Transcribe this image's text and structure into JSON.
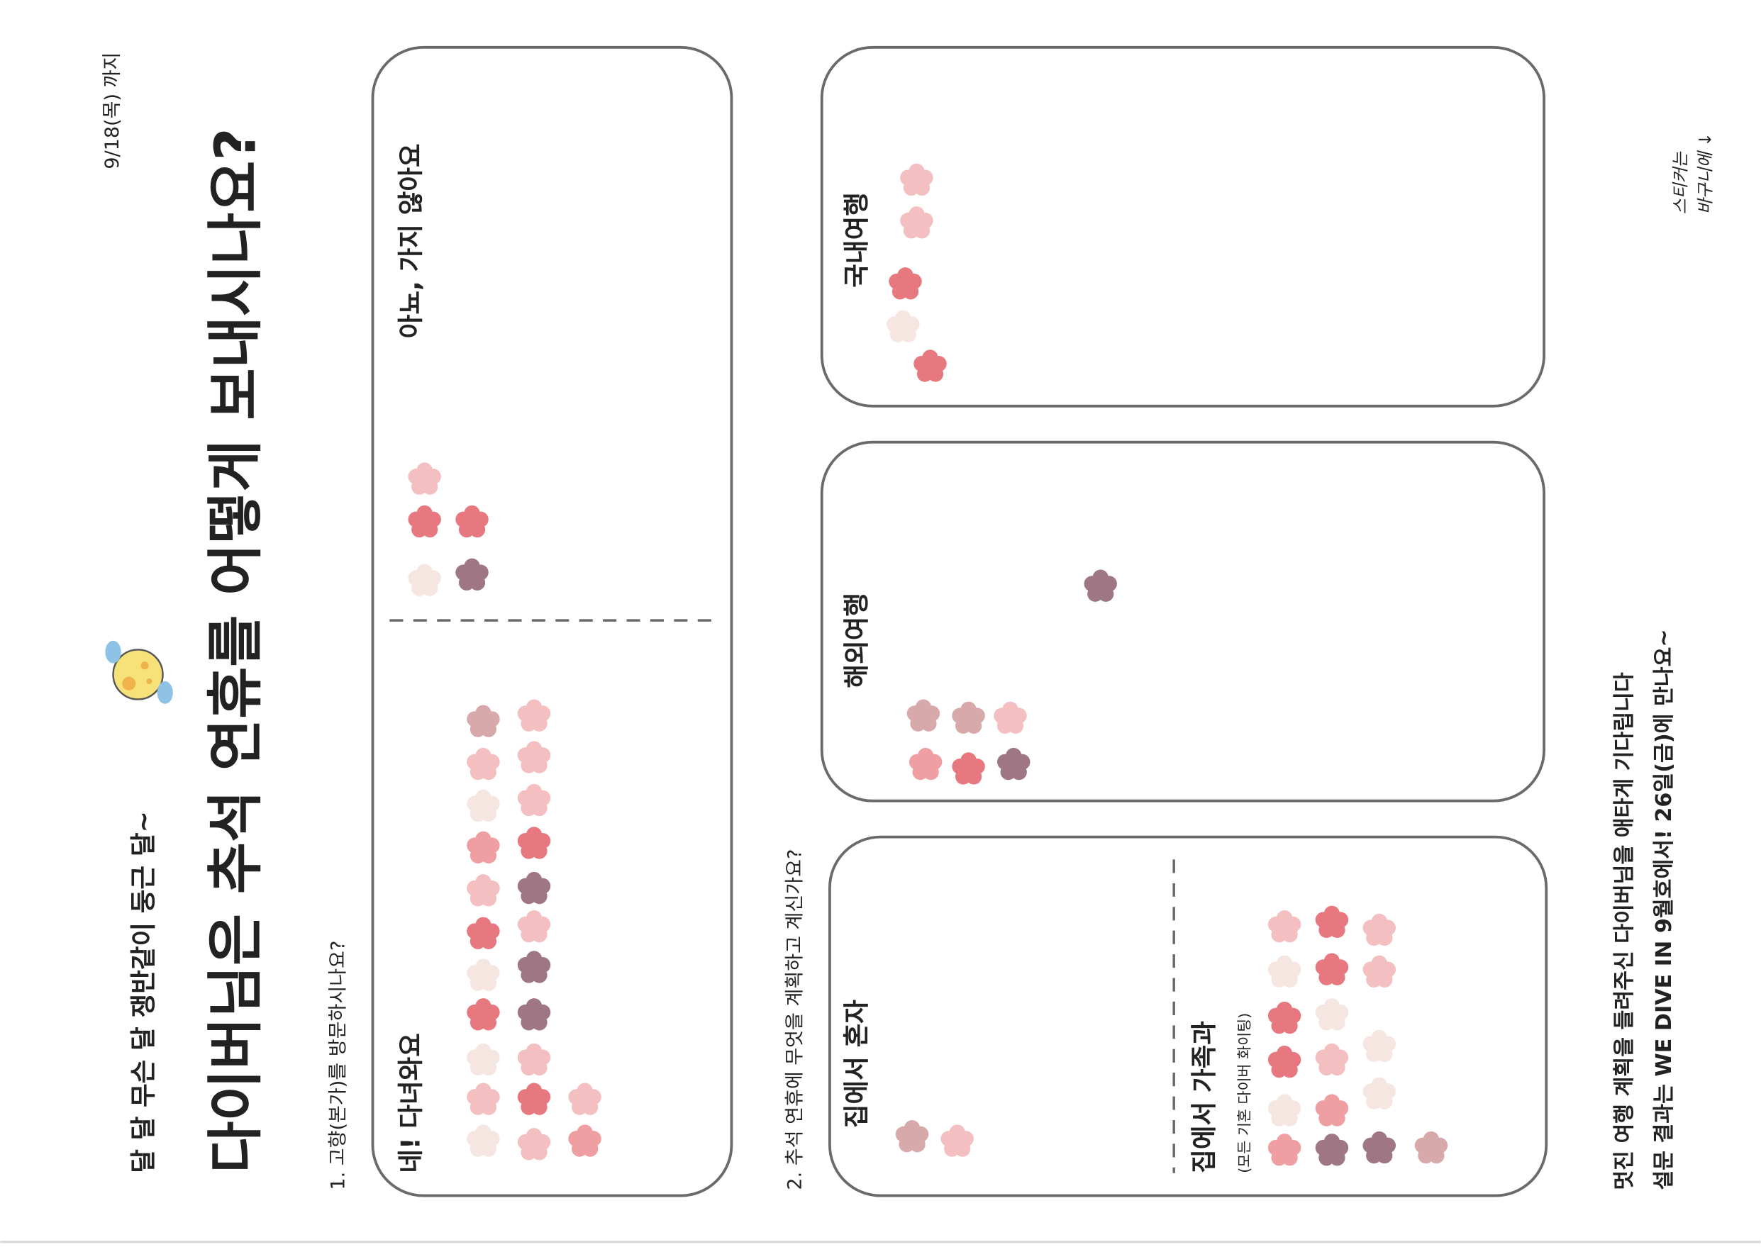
{
  "header": {
    "deadline": "9/18(목) 까지",
    "subtitle": "달 달 무슨 달 쟁반같이 둥근 달~",
    "title": "다이버님은 추석 연휴를 어떻게 보내시나요?"
  },
  "question1": {
    "label": "1. 고향(본가)를 방문하시나요?",
    "options": [
      "네! 다녀와요",
      "아뇨, 가지 않아요"
    ]
  },
  "question2": {
    "label": "2. 추석 연휴에 무엇을 계획하고 계신가요?",
    "options": [
      {
        "label": "집에서 혼자"
      },
      {
        "label": "집에서 가족과",
        "note": "(모든 기혼 다이버 화이팅)"
      },
      {
        "label": "해외여행"
      },
      {
        "label": "국내여행"
      }
    ]
  },
  "footer": {
    "line1": "멋진 여행 계획을 들려주신 다이버님을 애타게 기다립니다",
    "line2": "설문 결과는 WE DIVE IN 9월호에서! 26일(금)에 만나요~"
  },
  "handwritten_note": [
    "스티커는",
    "바구니에 ↓"
  ]
}
